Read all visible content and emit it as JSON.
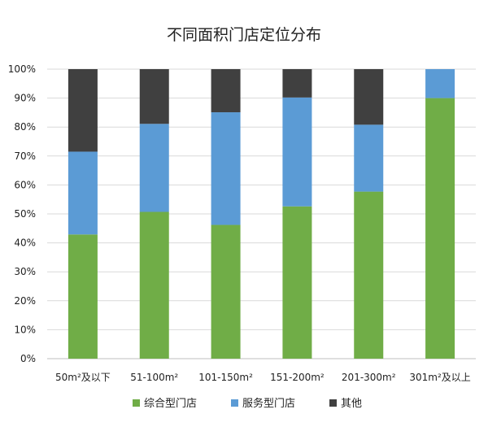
{
  "chart_data": {
    "type": "bar",
    "stacked": true,
    "percent": true,
    "title": "不同面积门店定位分布",
    "xlabel": "",
    "ylabel": "",
    "ylim": [
      0,
      100
    ],
    "yticks": [
      "0%",
      "10%",
      "20%",
      "30%",
      "40%",
      "50%",
      "60%",
      "70%",
      "80%",
      "90%",
      "100%"
    ],
    "categories": [
      "50m²及以下",
      "51-100m²",
      "101-150m²",
      "151-200m²",
      "201-300m²",
      "301m²及以上"
    ],
    "series": [
      {
        "name": "综合型门店",
        "color": "#70ad47",
        "values": [
          42.9,
          50.7,
          46.2,
          52.6,
          57.7,
          90.0
        ]
      },
      {
        "name": "服务型门店",
        "color": "#5b9bd5",
        "values": [
          28.6,
          30.4,
          38.9,
          37.6,
          23.1,
          10.0
        ]
      },
      {
        "name": "其他",
        "color": "#404040",
        "values": [
          28.5,
          18.9,
          14.9,
          9.8,
          19.2,
          0.0
        ]
      }
    ],
    "grid": true,
    "legend_position": "bottom"
  }
}
